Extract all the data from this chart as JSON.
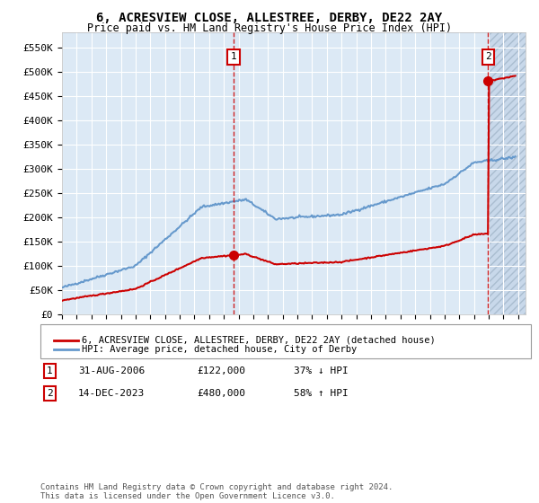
{
  "title": "6, ACRESVIEW CLOSE, ALLESTREE, DERBY, DE22 2AY",
  "subtitle": "Price paid vs. HM Land Registry's House Price Index (HPI)",
  "ylabel_ticks": [
    "£0",
    "£50K",
    "£100K",
    "£150K",
    "£200K",
    "£250K",
    "£300K",
    "£350K",
    "£400K",
    "£450K",
    "£500K",
    "£550K"
  ],
  "ytick_values": [
    0,
    50000,
    100000,
    150000,
    200000,
    250000,
    300000,
    350000,
    400000,
    450000,
    500000,
    550000
  ],
  "ylim": [
    0,
    580000
  ],
  "xlim_start": 1995,
  "xlim_end": 2026.5,
  "background_color": "#dce9f5",
  "hatch_color": "#c8d8ea",
  "sale1_date": 2006.67,
  "sale1_price": 122000,
  "sale1_label": "1",
  "sale2_date": 2023.96,
  "sale2_price": 480000,
  "sale2_label": "2",
  "house_color": "#cc0000",
  "hpi_color": "#6699cc",
  "legend_house": "6, ACRESVIEW CLOSE, ALLESTREE, DERBY, DE22 2AY (detached house)",
  "legend_hpi": "HPI: Average price, detached house, City of Derby",
  "ann1_label": "1",
  "ann1_date": "31-AUG-2006",
  "ann1_price": "£122,000",
  "ann1_pct": "37% ↓ HPI",
  "ann2_label": "2",
  "ann2_date": "14-DEC-2023",
  "ann2_price": "£480,000",
  "ann2_pct": "58% ↑ HPI",
  "footer": "Contains HM Land Registry data © Crown copyright and database right 2024.\nThis data is licensed under the Open Government Licence v3.0."
}
